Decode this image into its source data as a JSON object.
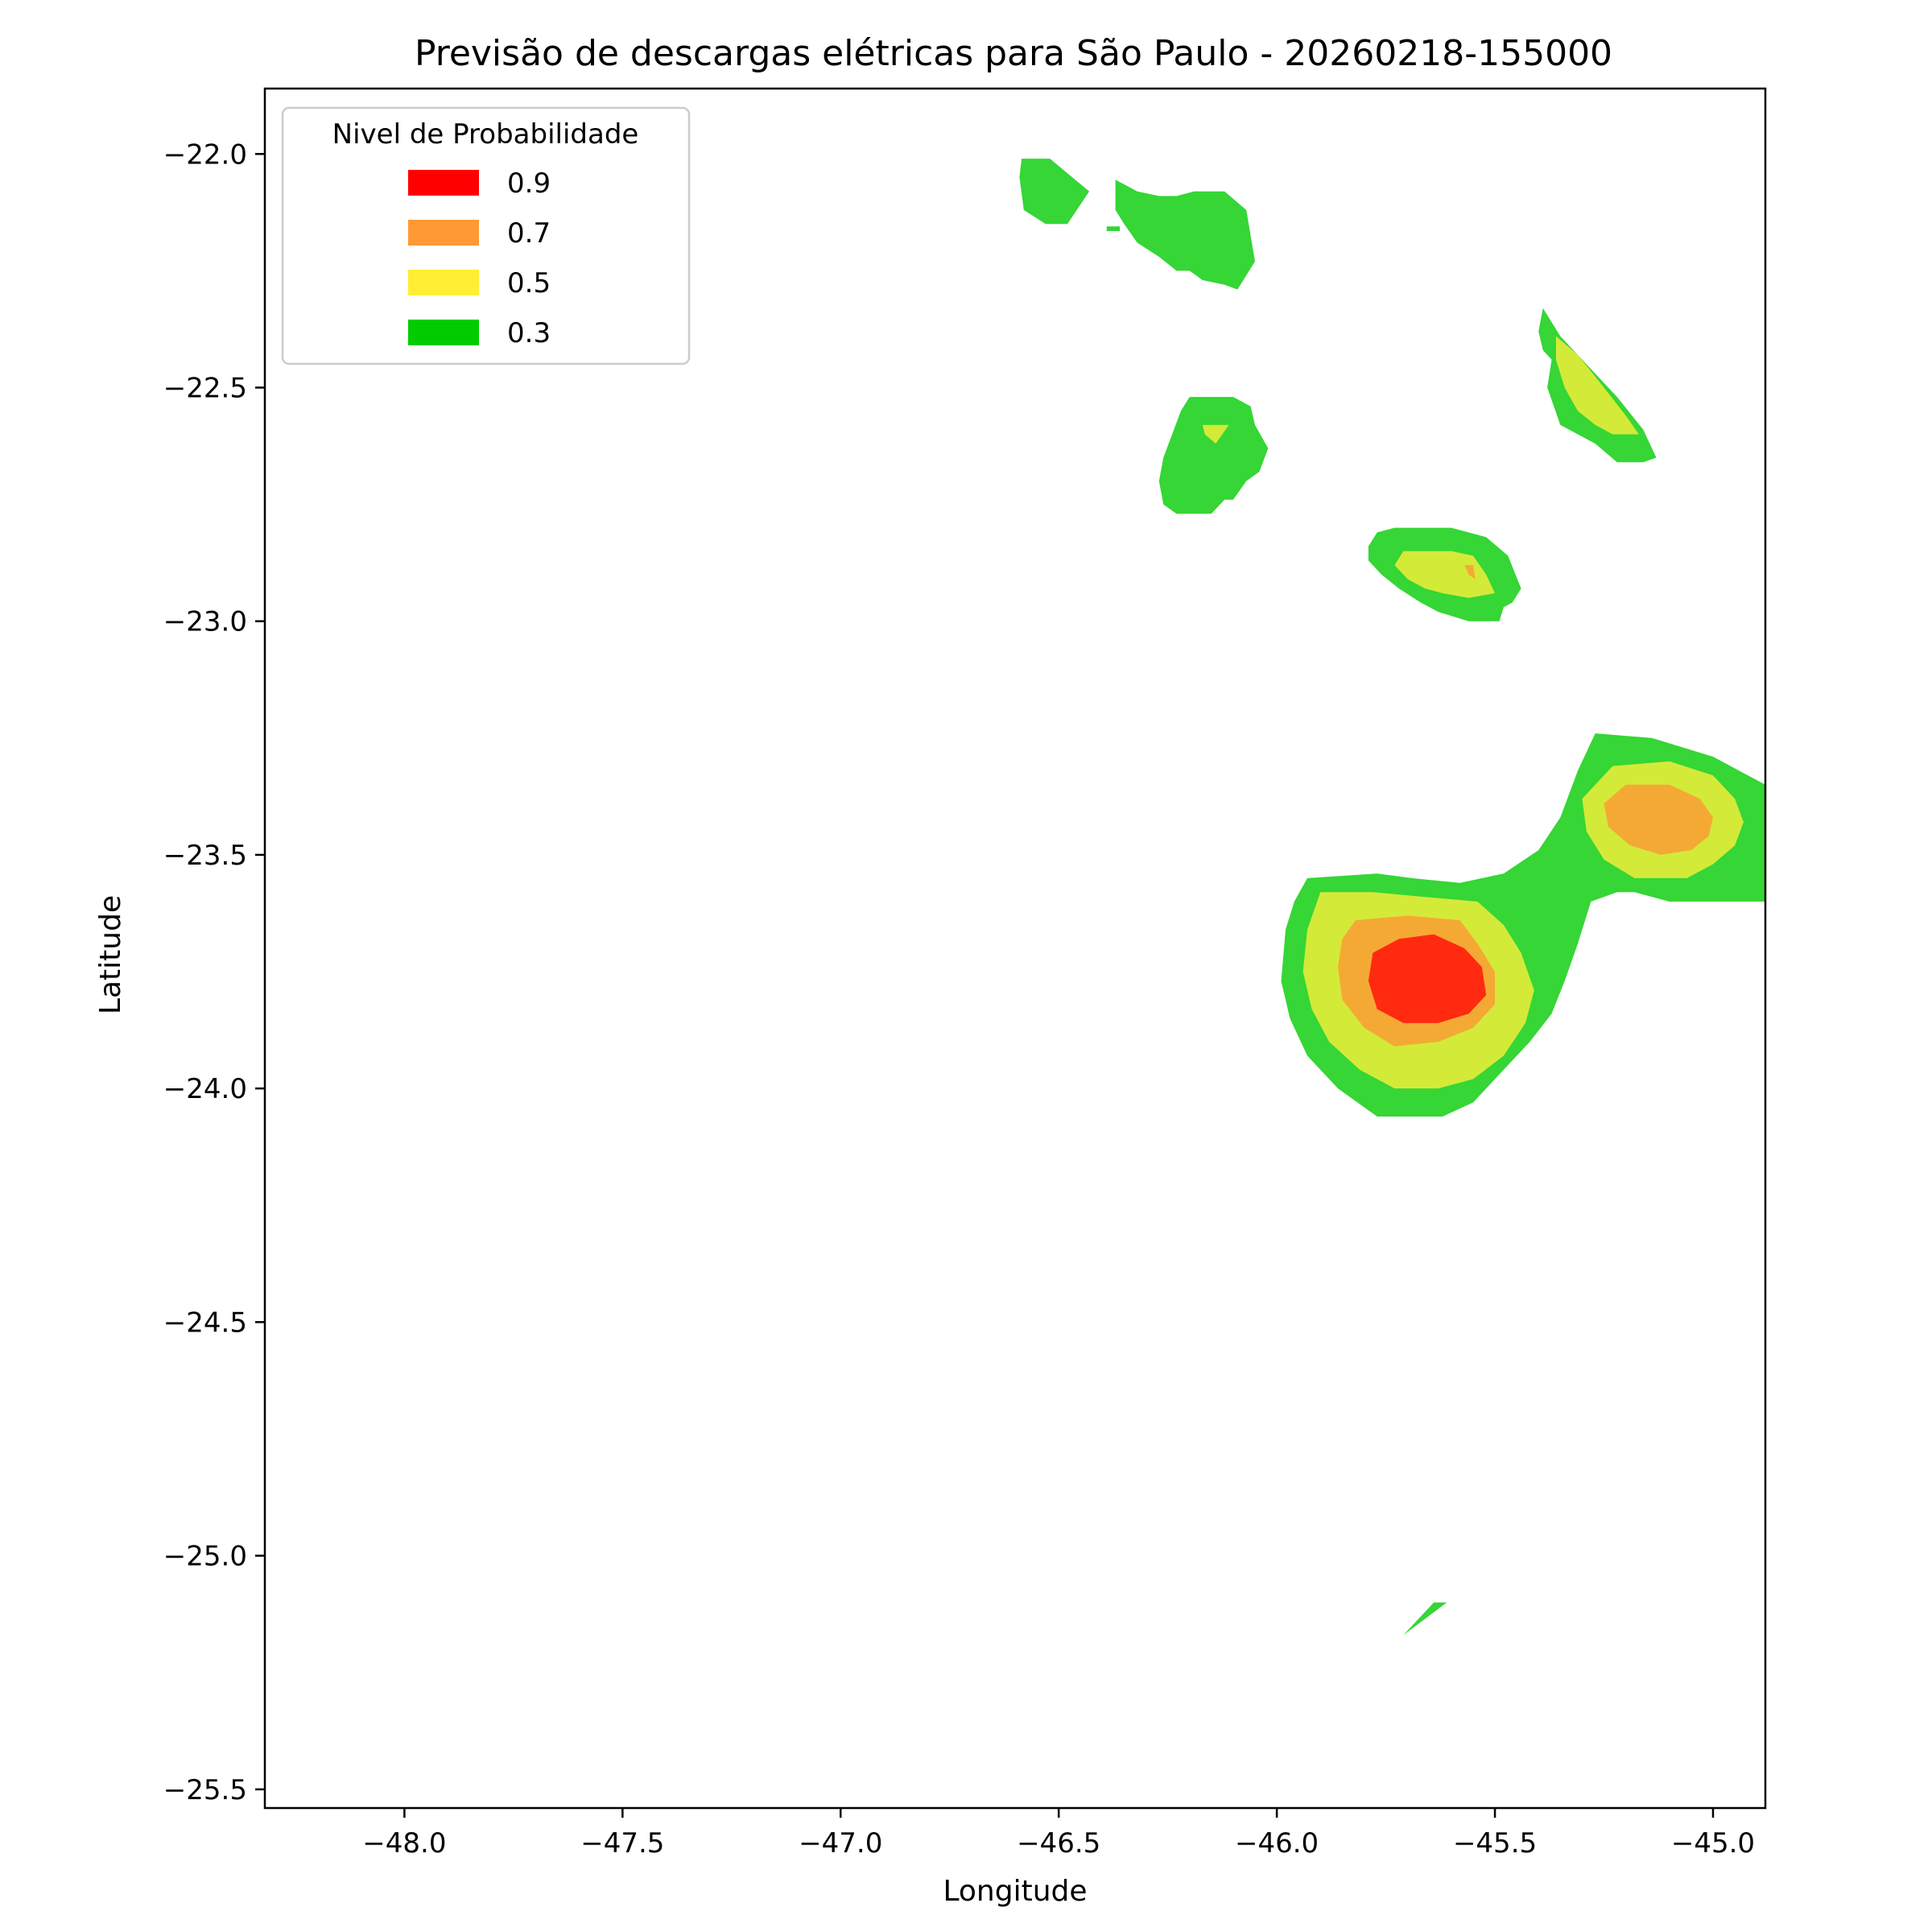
{
  "chart_data": {
    "type": "contourf",
    "title": "Previsão de descargas elétricas para São Paulo - 20260218-155000",
    "xlabel": "Longitude",
    "ylabel": "Latitude",
    "xlim": [
      -48.32,
      -44.88
    ],
    "ylim": [
      -25.54,
      -21.86
    ],
    "x_ticks": [
      -48.0,
      -47.5,
      -47.0,
      -46.5,
      -46.0,
      -45.5,
      -45.0
    ],
    "x_tick_labels": [
      "−48.0",
      "−47.5",
      "−47.0",
      "−46.5",
      "−46.0",
      "−45.5",
      "−45.0"
    ],
    "y_ticks": [
      -22.0,
      -22.5,
      -23.0,
      -23.5,
      -24.0,
      -24.5,
      -25.0,
      -25.5
    ],
    "y_tick_labels": [
      "−22.0",
      "−22.5",
      "−23.0",
      "−23.5",
      "−24.0",
      "−24.5",
      "−25.0",
      "−25.5"
    ],
    "grid": false,
    "legend": {
      "title": "Nivel de Probabilidade",
      "position": "top-left",
      "entries": [
        {
          "label": "0.9",
          "color": "#ff0000"
        },
        {
          "label": "0.7",
          "color": "#ff9933"
        },
        {
          "label": "0.5",
          "color": "#ffee33"
        },
        {
          "label": "0.3",
          "color": "#00cc00"
        }
      ]
    },
    "fill_colors": {
      "0.3": "#35d635",
      "0.5": "#d4ea38",
      "0.7": "#f5a935",
      "0.9": "#ff2a10"
    },
    "regions": [
      {
        "name": "cell-north-small",
        "level": "0.3",
        "points": [
          [
            -46.585,
            -22.01
          ],
          [
            -46.52,
            -22.01
          ],
          [
            -46.43,
            -22.08
          ],
          [
            -46.48,
            -22.15
          ],
          [
            -46.53,
            -22.15
          ],
          [
            -46.58,
            -22.12
          ],
          [
            -46.59,
            -22.05
          ]
        ]
      },
      {
        "name": "cell-north-large",
        "level": "0.3",
        "points": [
          [
            -46.37,
            -22.055
          ],
          [
            -46.32,
            -22.08
          ],
          [
            -46.27,
            -22.09
          ],
          [
            -46.23,
            -22.09
          ],
          [
            -46.19,
            -22.08
          ],
          [
            -46.12,
            -22.08
          ],
          [
            -46.07,
            -22.12
          ],
          [
            -46.05,
            -22.23
          ],
          [
            -46.09,
            -22.29
          ],
          [
            -46.12,
            -22.28
          ],
          [
            -46.17,
            -22.27
          ],
          [
            -46.2,
            -22.25
          ],
          [
            -46.23,
            -22.25
          ],
          [
            -46.27,
            -22.22
          ],
          [
            -46.32,
            -22.19
          ],
          [
            -46.35,
            -22.15
          ],
          [
            -46.37,
            -22.12
          ]
        ]
      },
      {
        "name": "cell-north-large-tail",
        "level": "0.3",
        "points": [
          [
            -46.39,
            -22.155
          ],
          [
            -46.36,
            -22.155
          ],
          [
            -46.36,
            -22.165
          ],
          [
            -46.39,
            -22.165
          ]
        ]
      },
      {
        "name": "cell-mid-west",
        "level": "0.3",
        "points": [
          [
            -46.2,
            -22.52
          ],
          [
            -46.1,
            -22.52
          ],
          [
            -46.06,
            -22.54
          ],
          [
            -46.05,
            -22.58
          ],
          [
            -46.02,
            -22.63
          ],
          [
            -46.04,
            -22.68
          ],
          [
            -46.07,
            -22.7
          ],
          [
            -46.1,
            -22.74
          ],
          [
            -46.12,
            -22.74
          ],
          [
            -46.15,
            -22.77
          ],
          [
            -46.23,
            -22.77
          ],
          [
            -46.26,
            -22.75
          ],
          [
            -46.27,
            -22.7
          ],
          [
            -46.26,
            -22.65
          ],
          [
            -46.24,
            -22.6
          ],
          [
            -46.22,
            -22.55
          ]
        ]
      },
      {
        "name": "cell-mid-west-core",
        "level": "0.5",
        "points": [
          [
            -46.17,
            -22.58
          ],
          [
            -46.11,
            -22.58
          ],
          [
            -46.14,
            -22.62
          ],
          [
            -46.165,
            -22.6
          ]
        ]
      },
      {
        "name": "cell-northeast-band",
        "level": "0.3",
        "points": [
          [
            -45.39,
            -22.33
          ],
          [
            -45.35,
            -22.39
          ],
          [
            -45.29,
            -22.45
          ],
          [
            -45.22,
            -22.52
          ],
          [
            -45.16,
            -22.59
          ],
          [
            -45.13,
            -22.65
          ],
          [
            -45.16,
            -22.66
          ],
          [
            -45.22,
            -22.66
          ],
          [
            -45.27,
            -22.62
          ],
          [
            -45.31,
            -22.6
          ],
          [
            -45.35,
            -22.58
          ],
          [
            -45.38,
            -22.5
          ],
          [
            -45.37,
            -22.44
          ],
          [
            -45.39,
            -22.42
          ],
          [
            -45.4,
            -22.38
          ]
        ]
      },
      {
        "name": "cell-northeast-core",
        "level": "0.5",
        "points": [
          [
            -45.36,
            -22.39
          ],
          [
            -45.31,
            -22.43
          ],
          [
            -45.25,
            -22.5
          ],
          [
            -45.2,
            -22.56
          ],
          [
            -45.17,
            -22.6
          ],
          [
            -45.23,
            -22.6
          ],
          [
            -45.27,
            -22.58
          ],
          [
            -45.31,
            -22.55
          ],
          [
            -45.34,
            -22.5
          ],
          [
            -45.36,
            -22.44
          ]
        ]
      },
      {
        "name": "cell-center",
        "level": "0.3",
        "points": [
          [
            -45.77,
            -22.81
          ],
          [
            -45.73,
            -22.8
          ],
          [
            -45.6,
            -22.8
          ],
          [
            -45.52,
            -22.82
          ],
          [
            -45.47,
            -22.86
          ],
          [
            -45.44,
            -22.93
          ],
          [
            -45.46,
            -22.96
          ],
          [
            -45.48,
            -22.97
          ],
          [
            -45.49,
            -23.0
          ],
          [
            -45.56,
            -23.0
          ],
          [
            -45.63,
            -22.98
          ],
          [
            -45.67,
            -22.96
          ],
          [
            -45.72,
            -22.93
          ],
          [
            -45.76,
            -22.9
          ],
          [
            -45.79,
            -22.87
          ],
          [
            -45.79,
            -22.84
          ]
        ]
      },
      {
        "name": "cell-center-core",
        "level": "0.5",
        "points": [
          [
            -45.71,
            -22.85
          ],
          [
            -45.6,
            -22.85
          ],
          [
            -45.55,
            -22.86
          ],
          [
            -45.52,
            -22.9
          ],
          [
            -45.5,
            -22.94
          ],
          [
            -45.56,
            -22.95
          ],
          [
            -45.62,
            -22.94
          ],
          [
            -45.66,
            -22.93
          ],
          [
            -45.7,
            -22.91
          ],
          [
            -45.73,
            -22.88
          ]
        ]
      },
      {
        "name": "cell-center-peak",
        "level": "0.7",
        "points": [
          [
            -45.57,
            -22.88
          ],
          [
            -45.55,
            -22.88
          ],
          [
            -45.545,
            -22.91
          ],
          [
            -45.56,
            -22.9
          ]
        ]
      },
      {
        "name": "cell-main",
        "level": "0.3",
        "points": [
          [
            -45.93,
            -23.55
          ],
          [
            -45.77,
            -23.54
          ],
          [
            -45.69,
            -23.55
          ],
          [
            -45.58,
            -23.56
          ],
          [
            -45.48,
            -23.54
          ],
          [
            -45.4,
            -23.49
          ],
          [
            -45.35,
            -23.42
          ],
          [
            -45.31,
            -23.32
          ],
          [
            -45.27,
            -23.24
          ],
          [
            -45.14,
            -23.25
          ],
          [
            -45.0,
            -23.29
          ],
          [
            -44.88,
            -23.35
          ],
          [
            -44.88,
            -23.6
          ],
          [
            -45.1,
            -23.6
          ],
          [
            -45.18,
            -23.58
          ],
          [
            -45.22,
            -23.58
          ],
          [
            -45.28,
            -23.6
          ],
          [
            -45.31,
            -23.69
          ],
          [
            -45.34,
            -23.77
          ],
          [
            -45.37,
            -23.84
          ],
          [
            -45.42,
            -23.9
          ],
          [
            -45.47,
            -23.95
          ],
          [
            -45.55,
            -24.03
          ],
          [
            -45.62,
            -24.06
          ],
          [
            -45.77,
            -24.06
          ],
          [
            -45.86,
            -24.0
          ],
          [
            -45.93,
            -23.93
          ],
          [
            -45.97,
            -23.85
          ],
          [
            -45.99,
            -23.77
          ],
          [
            -45.98,
            -23.66
          ],
          [
            -45.96,
            -23.6
          ]
        ]
      },
      {
        "name": "cell-main-west-ring",
        "level": "0.5",
        "points": [
          [
            -45.9,
            -23.58
          ],
          [
            -45.78,
            -23.58
          ],
          [
            -45.66,
            -23.59
          ],
          [
            -45.54,
            -23.6
          ],
          [
            -45.48,
            -23.65
          ],
          [
            -45.44,
            -23.71
          ],
          [
            -45.41,
            -23.79
          ],
          [
            -45.43,
            -23.86
          ],
          [
            -45.48,
            -23.93
          ],
          [
            -45.55,
            -23.98
          ],
          [
            -45.63,
            -24.0
          ],
          [
            -45.73,
            -24.0
          ],
          [
            -45.81,
            -23.96
          ],
          [
            -45.88,
            -23.9
          ],
          [
            -45.92,
            -23.83
          ],
          [
            -45.94,
            -23.75
          ],
          [
            -45.93,
            -23.66
          ]
        ]
      },
      {
        "name": "cell-main-west-orange",
        "level": "0.7",
        "points": [
          [
            -45.82,
            -23.64
          ],
          [
            -45.7,
            -23.63
          ],
          [
            -45.58,
            -23.64
          ],
          [
            -45.54,
            -23.69
          ],
          [
            -45.5,
            -23.75
          ],
          [
            -45.5,
            -23.82
          ],
          [
            -45.55,
            -23.87
          ],
          [
            -45.63,
            -23.9
          ],
          [
            -45.73,
            -23.91
          ],
          [
            -45.8,
            -23.87
          ],
          [
            -45.85,
            -23.81
          ],
          [
            -45.86,
            -23.74
          ],
          [
            -45.85,
            -23.68
          ]
        ]
      },
      {
        "name": "cell-main-west-red",
        "level": "0.9",
        "points": [
          [
            -45.72,
            -23.68
          ],
          [
            -45.64,
            -23.67
          ],
          [
            -45.57,
            -23.7
          ],
          [
            -45.53,
            -23.74
          ],
          [
            -45.52,
            -23.8
          ],
          [
            -45.56,
            -23.84
          ],
          [
            -45.63,
            -23.86
          ],
          [
            -45.71,
            -23.86
          ],
          [
            -45.77,
            -23.83
          ],
          [
            -45.79,
            -23.77
          ],
          [
            -45.78,
            -23.71
          ]
        ]
      },
      {
        "name": "cell-main-east-ring",
        "level": "0.5",
        "points": [
          [
            -45.23,
            -23.31
          ],
          [
            -45.1,
            -23.3
          ],
          [
            -45.0,
            -23.33
          ],
          [
            -44.95,
            -23.38
          ],
          [
            -44.93,
            -23.43
          ],
          [
            -44.95,
            -23.48
          ],
          [
            -45.0,
            -23.52
          ],
          [
            -45.06,
            -23.55
          ],
          [
            -45.18,
            -23.55
          ],
          [
            -45.25,
            -23.51
          ],
          [
            -45.29,
            -23.45
          ],
          [
            -45.3,
            -23.38
          ]
        ]
      },
      {
        "name": "cell-main-east-orange",
        "level": "0.7",
        "points": [
          [
            -45.2,
            -23.35
          ],
          [
            -45.1,
            -23.35
          ],
          [
            -45.03,
            -23.38
          ],
          [
            -45.0,
            -23.42
          ],
          [
            -45.01,
            -23.46
          ],
          [
            -45.05,
            -23.49
          ],
          [
            -45.12,
            -23.5
          ],
          [
            -45.19,
            -23.48
          ],
          [
            -45.24,
            -23.44
          ],
          [
            -45.25,
            -23.39
          ]
        ]
      },
      {
        "name": "cell-south-sliver",
        "level": "0.3",
        "points": [
          [
            -45.64,
            -25.1
          ],
          [
            -45.61,
            -25.1
          ],
          [
            -45.71,
            -25.17
          ],
          [
            -45.68,
            -25.14
          ]
        ]
      }
    ]
  }
}
